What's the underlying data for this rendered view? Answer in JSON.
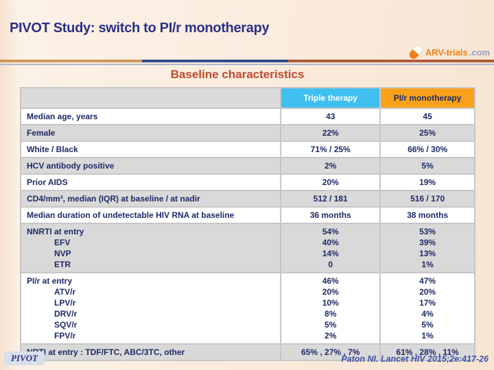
{
  "slide": {
    "title": "PIVOT Study: switch to PI/r monotherapy",
    "subtitle": "Baseline characteristics",
    "logo": {
      "brand": "ARV-trials",
      "suffix": ".com"
    },
    "footer_badge": "PIVOT",
    "citation": "Paton NI. Lancet HIV 2015;2e:417-26"
  },
  "colors": {
    "triple_header_bg": "#3FC0F0",
    "mono_header_bg": "#F9A11B",
    "row_shade": "#D9D9D9",
    "navy_text": "#1E2A66",
    "subtitle_color": "#BE4B2D"
  },
  "table": {
    "columns": [
      "",
      "Triple therapy",
      "PI/r monotherapy"
    ],
    "rows": [
      {
        "label": [
          "Median age, years"
        ],
        "triple": [
          "43"
        ],
        "mono": [
          "45"
        ]
      },
      {
        "label": [
          "Female"
        ],
        "triple": [
          "22%"
        ],
        "mono": [
          "25%"
        ]
      },
      {
        "label": [
          "White / Black"
        ],
        "triple": [
          "71% / 25%"
        ],
        "mono": [
          "66% / 30%"
        ]
      },
      {
        "label": [
          "HCV antibody positive"
        ],
        "triple": [
          "2%"
        ],
        "mono": [
          "5%"
        ]
      },
      {
        "label": [
          "Prior AIDS"
        ],
        "triple": [
          "20%"
        ],
        "mono": [
          "19%"
        ]
      },
      {
        "label": [
          "CD4/mm³, median (IQR) at baseline / at nadir"
        ],
        "triple": [
          "512 / 181"
        ],
        "mono": [
          "516 / 170"
        ]
      },
      {
        "label": [
          "Median duration of undetectable HIV RNA at baseline"
        ],
        "triple": [
          "36 months"
        ],
        "mono": [
          "38 months"
        ]
      },
      {
        "label": [
          "NNRTI at entry",
          "EFV",
          "NVP",
          "ETR"
        ],
        "triple": [
          "54%",
          "40%",
          "14%",
          "0"
        ],
        "mono": [
          "53%",
          "39%",
          "13%",
          "1%"
        ]
      },
      {
        "label": [
          "PI/r at entry",
          "ATV/r",
          "LPV/r",
          "DRV/r",
          "SQV/r",
          "FPV/r"
        ],
        "triple": [
          "46%",
          "20%",
          "10%",
          "8%",
          "5%",
          "2%"
        ],
        "mono": [
          "47%",
          "20%",
          "17%",
          "4%",
          "5%",
          "1%"
        ]
      },
      {
        "label": [
          "NRTI at entry : TDF/FTC, ABC/3TC, other"
        ],
        "triple": [
          "65% , 27% , 7%"
        ],
        "mono": [
          "61% , 28% , 11%"
        ]
      }
    ]
  }
}
